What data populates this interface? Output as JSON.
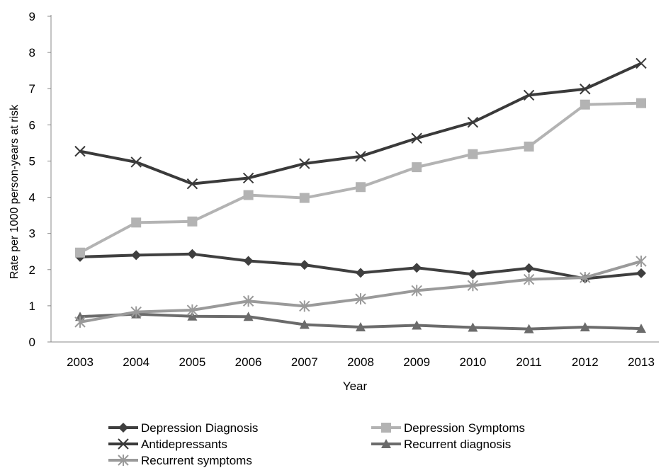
{
  "chart_data": {
    "type": "line",
    "title": "",
    "xlabel": "Year",
    "ylabel": "Rate per 1000 person-years at risk",
    "ylim": [
      0,
      9
    ],
    "yticks": [
      "0",
      "1",
      "2",
      "3",
      "4",
      "5",
      "6",
      "7",
      "8",
      "9"
    ],
    "categories": [
      "2003",
      "2004",
      "2005",
      "2006",
      "2007",
      "2008",
      "2009",
      "2010",
      "2011",
      "2012",
      "2013"
    ],
    "grid": false,
    "legend_position": "bottom",
    "series": [
      {
        "name": "Depression Diagnosis",
        "marker": "diamond",
        "color": "#3f3f3f",
        "values": [
          2.35,
          2.4,
          2.43,
          2.24,
          2.13,
          1.91,
          2.05,
          1.87,
          2.04,
          1.75,
          1.9
        ]
      },
      {
        "name": "Depression Symptoms",
        "marker": "square",
        "color": "#b3b3b3",
        "values": [
          2.47,
          3.3,
          3.33,
          4.06,
          3.98,
          4.28,
          4.83,
          5.19,
          5.4,
          6.56,
          6.6
        ]
      },
      {
        "name": "Antidepressants",
        "marker": "x",
        "color": "#3a3a3a",
        "values": [
          5.27,
          4.97,
          4.37,
          4.53,
          4.93,
          5.13,
          5.63,
          6.07,
          6.82,
          6.99,
          7.7
        ]
      },
      {
        "name": "Recurrent diagnosis",
        "marker": "triangle",
        "color": "#6b6b6b",
        "values": [
          0.7,
          0.77,
          0.71,
          0.7,
          0.48,
          0.41,
          0.46,
          0.4,
          0.36,
          0.41,
          0.37
        ]
      },
      {
        "name": "Recurrent symptoms",
        "marker": "asterisk",
        "color": "#9a9a9a",
        "values": [
          0.55,
          0.83,
          0.88,
          1.13,
          0.99,
          1.19,
          1.42,
          1.56,
          1.73,
          1.78,
          2.23
        ]
      }
    ]
  }
}
